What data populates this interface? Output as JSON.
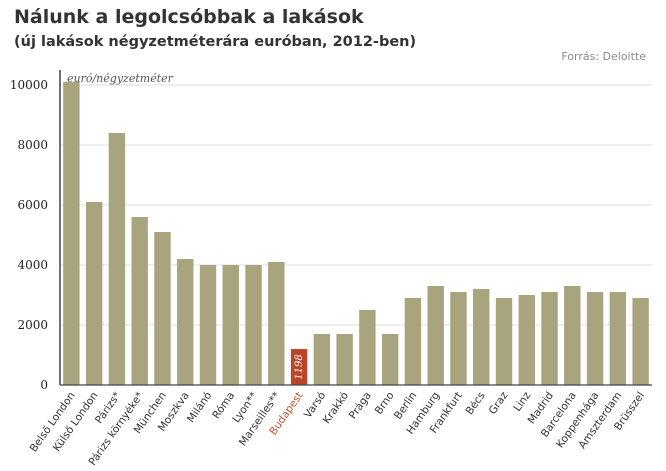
{
  "header": {
    "title": "Nálunk a legolcsóbbak a lakások",
    "subtitle": "(új lakások négyzetméterára euróban, 2012-ben)",
    "source": "Forrás: Deloitte"
  },
  "colors": {
    "bar": "#a8a47e",
    "highlight": "#b8472a",
    "grid": "#dddddd",
    "axis": "#444444"
  },
  "chart_data": {
    "type": "bar",
    "ylabel": "euró/négyzetméter",
    "ylim": [
      0,
      10500
    ],
    "yticks": [
      0,
      2000,
      4000,
      6000,
      8000,
      10000
    ],
    "grid": true,
    "categories": [
      "Belső London",
      "Külső London",
      "Párizs*",
      "Párizs környéke*",
      "München",
      "Moszkva",
      "Milánó",
      "Róma",
      "Lyon**",
      "Marseilles**",
      "Budapest",
      "Varsó",
      "Krakkó",
      "Prága",
      "Brno",
      "Berlin",
      "Hamburg",
      "Frankfurt",
      "Bécs",
      "Graz",
      "Linz",
      "Madrid",
      "Barcelona",
      "Koppenhága",
      "Amszterdam",
      "Brüsszel"
    ],
    "values": [
      10100,
      6100,
      8400,
      5600,
      5100,
      4200,
      4000,
      4000,
      4000,
      4100,
      1198,
      1700,
      1700,
      2500,
      1700,
      2900,
      3300,
      3100,
      3200,
      2900,
      3000,
      3100,
      3300,
      3100,
      3100,
      2900
    ],
    "highlight": "Budapest",
    "data_labels": [
      {
        "category": "Budapest",
        "text": "1198"
      }
    ]
  }
}
